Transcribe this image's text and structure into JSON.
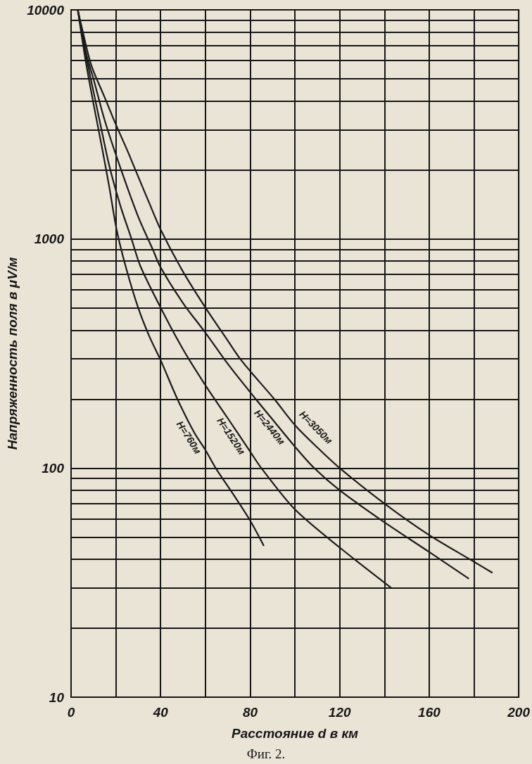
{
  "chart_data": {
    "type": "line",
    "xlabel": "Расстояние d в км",
    "ylabel": "Напряженность поля в μV/м",
    "annotations": [
      "Фиг. 2."
    ],
    "series": [
      {
        "name": "H=760м",
        "color": "#1a1a1a",
        "x": [
          3,
          6.5,
          10,
          13.5,
          17,
          20.5,
          24.7,
          30,
          35,
          40,
          47.5,
          55,
          60,
          64.6,
          72,
          80,
          86
        ],
        "values": [
          10000,
          6000,
          3900,
          2600,
          1700,
          1080,
          740,
          500,
          375,
          296,
          200,
          143,
          120,
          100,
          78,
          59,
          46
        ]
      },
      {
        "name": "H=1520м",
        "color": "#1a1a1a",
        "x": [
          3,
          7,
          10,
          13,
          17,
          22,
          27,
          31,
          40,
          50,
          60,
          70,
          80,
          85,
          100,
          120,
          143
        ],
        "values": [
          10000,
          6100,
          4400,
          3200,
          2100,
          1400,
          1000,
          760,
          502,
          330,
          230,
          165,
          118,
          100,
          66,
          45,
          30
        ]
      },
      {
        "name": "H=2440м",
        "color": "#1a1a1a",
        "x": [
          3,
          7,
          10,
          15,
          22,
          30,
          36.5,
          40,
          50,
          60,
          70,
          82.5,
          90,
          100,
          108.6,
          120,
          140,
          160,
          177.5
        ],
        "values": [
          10000,
          6300,
          5000,
          3300,
          2050,
          1250,
          900,
          752,
          525,
          390,
          285,
          200,
          163,
          124,
          100,
          80,
          58,
          43,
          33
        ]
      },
      {
        "name": "H=3050м",
        "color": "#1a1a1a",
        "x": [
          3,
          8,
          10,
          15,
          20,
          25,
          30,
          35,
          40,
          50,
          60,
          70,
          75.5,
          80,
          90.8,
          100,
          110,
          120,
          140,
          160,
          180,
          188
        ],
        "values": [
          10000,
          6200,
          5400,
          4150,
          3160,
          2450,
          1870,
          1430,
          1100,
          720,
          502,
          360,
          300,
          265,
          200,
          154,
          123,
          100,
          70,
          51,
          39,
          35
        ]
      }
    ],
    "xlim": [
      0,
      200
    ],
    "xticks": [
      0,
      {
        "value": 20,
        "label": null
      },
      40,
      {
        "value": 60,
        "label": null
      },
      80,
      {
        "value": 100,
        "label": null
      },
      120,
      {
        "value": 140,
        "label": null
      },
      160,
      {
        "value": 180,
        "label": null
      },
      200
    ],
    "ylim": [
      10,
      10000
    ],
    "yticks": [
      10,
      {
        "value": 20,
        "label": null
      },
      {
        "value": 30,
        "label": null
      },
      {
        "value": 40,
        "label": null
      },
      {
        "value": 50,
        "label": null
      },
      {
        "value": 60,
        "label": null
      },
      {
        "value": 70,
        "label": null
      },
      {
        "value": 80,
        "label": null
      },
      {
        "value": 90,
        "label": null
      },
      100,
      {
        "value": 200,
        "label": null
      },
      {
        "value": 300,
        "label": null
      },
      {
        "value": 400,
        "label": null
      },
      {
        "value": 500,
        "label": null
      },
      {
        "value": 600,
        "label": null
      },
      {
        "value": 700,
        "label": null
      },
      {
        "value": 800,
        "label": null
      },
      {
        "value": 900,
        "label": null
      },
      1000,
      {
        "value": 2000,
        "label": null
      },
      {
        "value": 3000,
        "label": null
      },
      {
        "value": 4000,
        "label": null
      },
      {
        "value": 5000,
        "label": null
      },
      {
        "value": 6000,
        "label": null
      },
      {
        "value": 7000,
        "label": null
      },
      {
        "value": 8000,
        "label": null
      },
      {
        "value": 9000,
        "label": null
      },
      10000
    ],
    "log": "y",
    "grid": true,
    "marker": "none",
    "line_style": "solid"
  }
}
